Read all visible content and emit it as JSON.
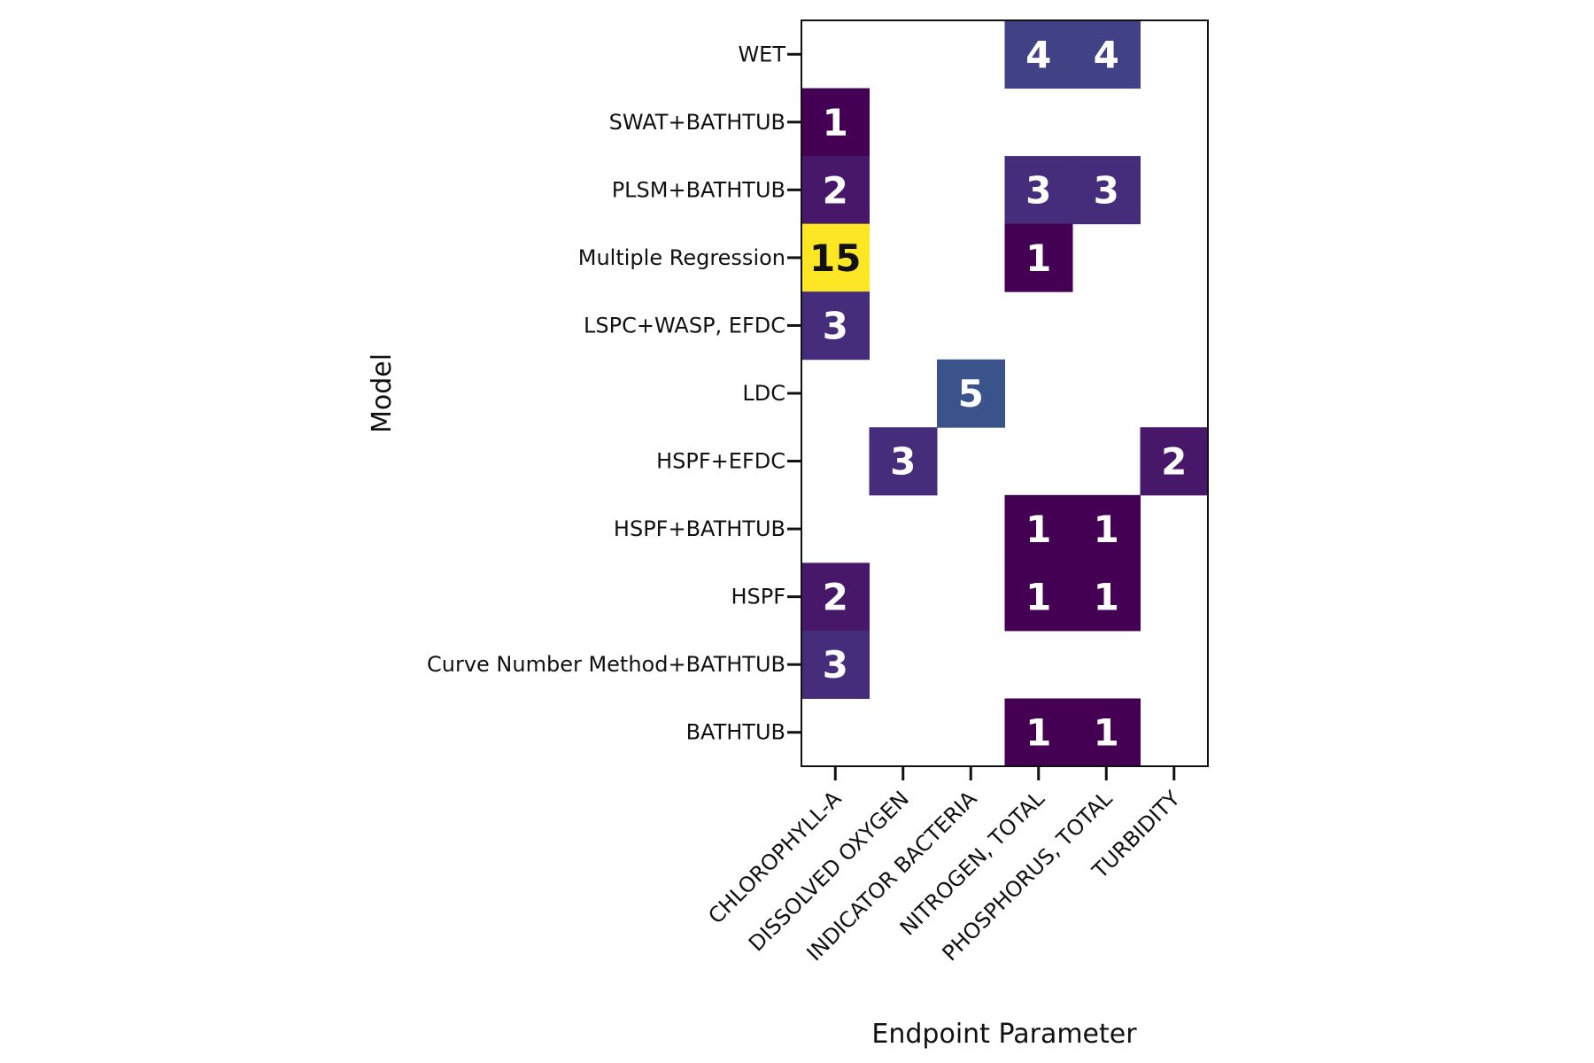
{
  "chart_data": {
    "type": "heatmap",
    "title": "",
    "xlabel": "Endpoint Parameter",
    "ylabel": "Model",
    "x_categories": [
      "CHLOROPHYLL-A",
      "DISSOLVED OXYGEN",
      "INDICATOR BACTERIA",
      "NITROGEN, TOTAL",
      "PHOSPHORUS, TOTAL",
      "TURBIDITY"
    ],
    "y_categories": [
      "WET",
      "SWAT+BATHTUB",
      "PLSM+BATHTUB",
      "Multiple Regression",
      "LSPC+WASP, EFDC",
      "LDC",
      "HSPF+EFDC",
      "HSPF+BATHTUB",
      "HSPF",
      "Curve Number Method+BATHTUB",
      "BATHTUB"
    ],
    "values": [
      [
        null,
        null,
        null,
        4,
        4,
        null
      ],
      [
        1,
        null,
        null,
        null,
        null,
        null
      ],
      [
        2,
        null,
        null,
        3,
        3,
        null
      ],
      [
        15,
        null,
        null,
        1,
        null,
        null
      ],
      [
        3,
        null,
        null,
        null,
        null,
        null
      ],
      [
        null,
        null,
        5,
        null,
        null,
        null
      ],
      [
        null,
        3,
        null,
        null,
        null,
        2
      ],
      [
        null,
        null,
        null,
        1,
        1,
        null
      ],
      [
        2,
        null,
        null,
        1,
        1,
        null
      ],
      [
        3,
        null,
        null,
        null,
        null,
        null
      ],
      [
        null,
        null,
        null,
        1,
        1,
        null
      ]
    ],
    "colormap": "viridis",
    "value_range": [
      1,
      15
    ],
    "grid": false,
    "legend": "none"
  }
}
